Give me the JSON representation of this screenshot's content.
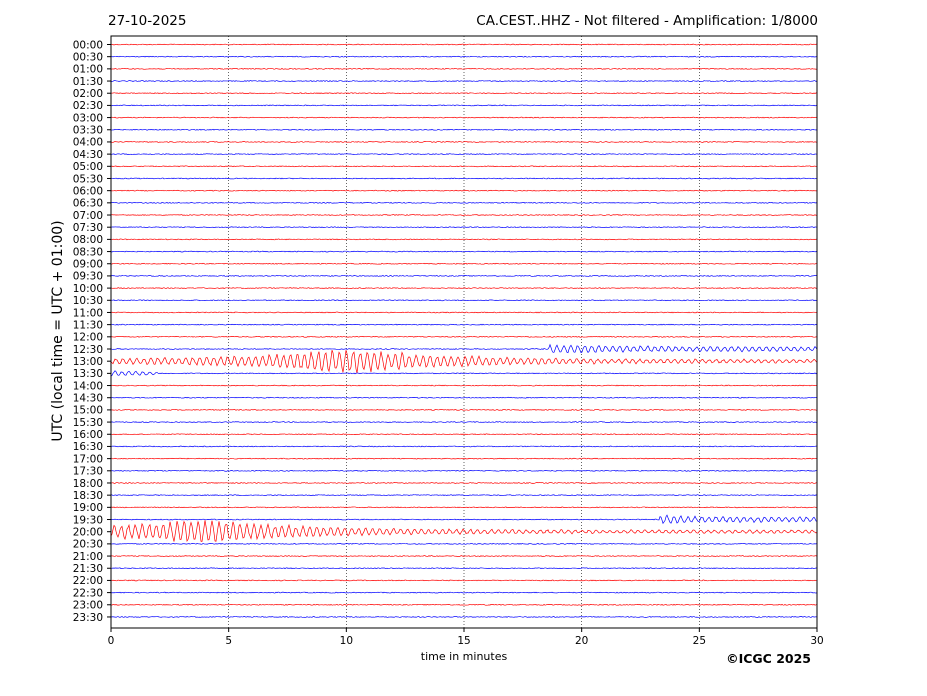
{
  "chart_data": {
    "type": "line",
    "title_left": "27-10-2025",
    "title_right": "CA.CEST..HHZ - Not filtered - Amplification: 1/8000",
    "xlabel": "time in minutes",
    "ylabel": "UTC (local time = UTC + 01:00)",
    "copyright": "©ICGC 2025",
    "xlim": [
      0,
      30
    ],
    "x_ticks": [
      "0",
      "5",
      "10",
      "15",
      "20",
      "25",
      "30"
    ],
    "x_grid_every_minutes": 5,
    "row_labels": [
      "00:00",
      "00:30",
      "01:00",
      "01:30",
      "02:00",
      "02:30",
      "03:00",
      "03:30",
      "04:00",
      "04:30",
      "05:00",
      "05:30",
      "06:00",
      "06:30",
      "07:00",
      "07:30",
      "08:00",
      "08:30",
      "09:00",
      "09:30",
      "10:00",
      "10:30",
      "11:00",
      "11:30",
      "12:00",
      "12:30",
      "13:00",
      "13:30",
      "14:00",
      "14:30",
      "15:00",
      "15:30",
      "16:00",
      "16:30",
      "17:00",
      "17:30",
      "18:00",
      "18:30",
      "19:00",
      "19:30",
      "20:00",
      "20:30",
      "21:00",
      "21:30",
      "22:00",
      "22:30",
      "23:00",
      "23:30"
    ],
    "colors": {
      "even_rows": "#ff0000",
      "odd_rows": "#0000ff",
      "grid": "#000000"
    },
    "events": [
      {
        "row": "12:30",
        "start_min": 18.6,
        "end_min": 30,
        "amplitude": "moderate"
      },
      {
        "row": "13:00",
        "start_min": 0,
        "end_min": 30,
        "peak_min": 10,
        "amplitude": "large"
      },
      {
        "row": "13:30",
        "start_min": 0,
        "end_min": 2,
        "amplitude": "small"
      },
      {
        "row": "19:30",
        "start_min": 23.3,
        "end_min": 30,
        "amplitude": "moderate"
      },
      {
        "row": "20:00",
        "start_min": 0,
        "end_min": 30,
        "peak_min": 3.7,
        "amplitude": "large"
      }
    ]
  }
}
